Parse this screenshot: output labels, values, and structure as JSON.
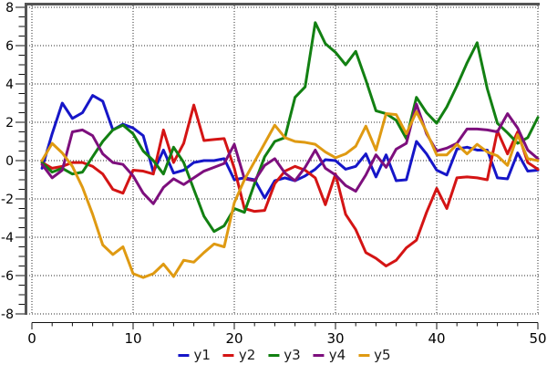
{
  "chart_data": {
    "type": "line",
    "title": "",
    "xlabel": "",
    "ylabel": "",
    "xlim": [
      0,
      50
    ],
    "ylim": [
      -8,
      8
    ],
    "grid": "dotted",
    "legend_position": "bottom-center",
    "x_start": 1,
    "x_step": 1,
    "x_ticks_major": [
      0,
      10,
      20,
      30,
      40,
      50
    ],
    "x_tick_minor_step": 2,
    "y_ticks_major": [
      8,
      6,
      4,
      2,
      0,
      -2,
      -4,
      -6,
      -8
    ],
    "y_tick_minor_step": 0.5,
    "axis_color": "#545454",
    "tick_color": "#111111",
    "grid_color": "#2a2a2a",
    "series": [
      {
        "name": "y1",
        "color": "#1616c8",
        "values": [
          -0.4,
          1.4,
          3.0,
          2.2,
          2.5,
          3.4,
          3.1,
          1.6,
          1.9,
          1.7,
          1.3,
          -0.6,
          0.55,
          -0.65,
          -0.5,
          -0.1,
          0.0,
          0.0,
          0.1,
          -1.0,
          -0.9,
          -1.0,
          -1.95,
          -1.05,
          -0.9,
          -1.05,
          -0.8,
          -0.45,
          0.05,
          0.0,
          -0.45,
          -0.3,
          0.35,
          -0.85,
          0.3,
          -1.05,
          -1.0,
          1.0,
          0.35,
          -0.5,
          -0.75,
          0.6,
          0.7,
          0.55,
          0.55,
          -0.9,
          -0.95,
          0.4,
          -0.55,
          -0.5
        ]
      },
      {
        "name": "y2",
        "color": "#d41414",
        "values": [
          -0.1,
          -0.4,
          -0.3,
          -0.1,
          -0.1,
          -0.3,
          -0.7,
          -1.5,
          -1.7,
          -0.5,
          -0.55,
          -0.7,
          1.6,
          -0.1,
          0.9,
          2.9,
          1.05,
          1.1,
          1.15,
          -0.4,
          -2.5,
          -2.65,
          -2.6,
          -1.2,
          -0.55,
          -0.3,
          -0.5,
          -0.9,
          -2.3,
          -0.7,
          -2.8,
          -3.6,
          -4.8,
          -5.1,
          -5.5,
          -5.2,
          -4.55,
          -4.15,
          -2.7,
          -1.45,
          -2.5,
          -0.9,
          -0.85,
          -0.9,
          -1.0,
          1.55,
          0.35,
          1.5,
          -0.1,
          -0.45
        ]
      },
      {
        "name": "y3",
        "color": "#128012",
        "values": [
          -0.1,
          -0.6,
          -0.4,
          -0.7,
          -0.6,
          0.2,
          1.0,
          1.6,
          1.85,
          1.4,
          0.5,
          0.0,
          -0.7,
          0.7,
          -0.1,
          -1.5,
          -2.9,
          -3.7,
          -3.4,
          -2.5,
          -2.7,
          -1.2,
          0.2,
          1.0,
          1.2,
          3.3,
          3.85,
          7.2,
          6.1,
          5.65,
          5.0,
          5.7,
          4.2,
          2.6,
          2.45,
          2.1,
          1.15,
          3.3,
          2.5,
          1.95,
          2.8,
          3.9,
          5.1,
          6.15,
          3.75,
          1.95,
          1.45,
          0.9,
          1.2,
          2.25
        ]
      },
      {
        "name": "y4",
        "color": "#7d0f7d",
        "values": [
          -0.2,
          -0.9,
          -0.5,
          1.5,
          1.6,
          1.3,
          0.35,
          -0.1,
          -0.2,
          -0.8,
          -1.7,
          -2.25,
          -1.4,
          -0.95,
          -1.25,
          -0.9,
          -0.55,
          -0.35,
          -0.15,
          0.85,
          -0.95,
          -1.05,
          -0.25,
          0.1,
          -0.65,
          -1.05,
          -0.35,
          0.55,
          -0.4,
          -0.75,
          -1.3,
          -1.6,
          -0.75,
          0.3,
          -0.35,
          0.6,
          0.9,
          2.95,
          1.4,
          0.5,
          0.65,
          0.9,
          1.65,
          1.65,
          1.6,
          1.5,
          2.45,
          1.7,
          0.55,
          0.1
        ]
      },
      {
        "name": "y5",
        "color": "#df9a12",
        "values": [
          0.0,
          0.9,
          0.4,
          -0.3,
          -1.4,
          -2.8,
          -4.4,
          -4.9,
          -4.5,
          -5.9,
          -6.1,
          -5.9,
          -5.4,
          -6.05,
          -5.2,
          -5.3,
          -4.8,
          -4.35,
          -4.5,
          -2.2,
          -1.0,
          -0.05,
          0.9,
          1.85,
          1.2,
          1.0,
          0.95,
          0.85,
          0.45,
          0.15,
          0.35,
          0.75,
          1.8,
          0.55,
          2.45,
          2.4,
          1.4,
          2.55,
          1.5,
          0.3,
          0.3,
          0.85,
          0.35,
          0.85,
          0.45,
          0.25,
          -0.25,
          1.35,
          0.1,
          0.0
        ]
      }
    ],
    "legend": [
      {
        "label": "y1",
        "color": "#1616c8"
      },
      {
        "label": "y2",
        "color": "#d41414"
      },
      {
        "label": "y3",
        "color": "#128012"
      },
      {
        "label": "y4",
        "color": "#7d0f7d"
      },
      {
        "label": "y5",
        "color": "#df9a12"
      }
    ]
  }
}
